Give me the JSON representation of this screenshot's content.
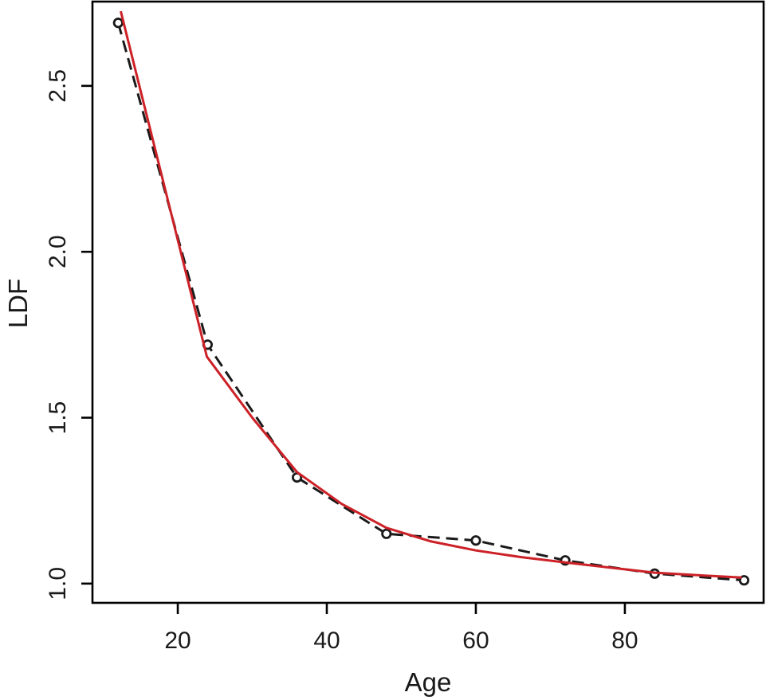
{
  "figure": {
    "background": "#ffffff",
    "box_color": "#000000"
  },
  "chart_data": {
    "type": "line",
    "title": "",
    "xlabel": "Age",
    "ylabel": "LDF",
    "xlim": [
      8.55,
      98.62
    ],
    "ylim": [
      0.942,
      2.754
    ],
    "x_ticks": [
      20,
      40,
      60,
      80
    ],
    "x_tick_labels": [
      "20",
      "40",
      "60",
      "80"
    ],
    "y_ticks": [
      1.0,
      1.5,
      2.0,
      2.5
    ],
    "y_tick_labels": [
      "1.0",
      "1.5",
      "2.0",
      "2.5"
    ],
    "grid": false,
    "legend": "none",
    "frame": "box",
    "series": [
      {
        "name": "observed-ldf-dashed",
        "style": "dashed",
        "color": "#1a1a1a",
        "marker": "open-circle",
        "x": [
          12,
          24,
          36,
          48,
          60,
          72,
          84,
          96
        ],
        "y": [
          2.69,
          1.72,
          1.32,
          1.15,
          1.13,
          1.07,
          1.03,
          1.01
        ]
      },
      {
        "name": "fitted-ldf-curve",
        "style": "solid",
        "color": "#cc2127",
        "marker": "none",
        "x": [
          12.35,
          23.9,
          30,
          36,
          42,
          48,
          54,
          60,
          66,
          72,
          78,
          84,
          90,
          95.7
        ],
        "y": [
          2.725,
          1.684,
          1.5,
          1.336,
          1.24,
          1.168,
          1.127,
          1.1,
          1.08,
          1.064,
          1.048,
          1.033,
          1.025,
          1.018
        ]
      }
    ]
  }
}
